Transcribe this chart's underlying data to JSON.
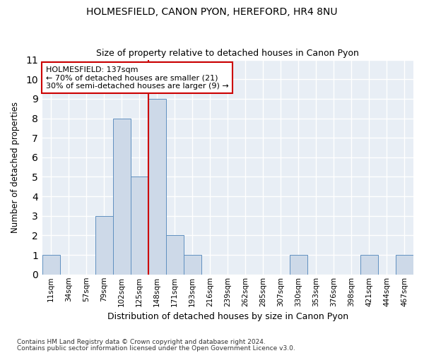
{
  "title1": "HOLMESFIELD, CANON PYON, HEREFORD, HR4 8NU",
  "title2": "Size of property relative to detached houses in Canon Pyon",
  "xlabel": "Distribution of detached houses by size in Canon Pyon",
  "ylabel": "Number of detached properties",
  "categories": [
    "11sqm",
    "34sqm",
    "57sqm",
    "79sqm",
    "102sqm",
    "125sqm",
    "148sqm",
    "171sqm",
    "193sqm",
    "216sqm",
    "239sqm",
    "262sqm",
    "285sqm",
    "307sqm",
    "330sqm",
    "353sqm",
    "376sqm",
    "398sqm",
    "421sqm",
    "444sqm",
    "467sqm"
  ],
  "values": [
    1,
    0,
    0,
    3,
    8,
    5,
    9,
    2,
    1,
    0,
    0,
    0,
    0,
    0,
    1,
    0,
    0,
    0,
    1,
    0,
    1
  ],
  "bar_color": "#cdd9e8",
  "bar_edge_color": "#6090c0",
  "vline_x_idx": 6,
  "vline_color": "#cc0000",
  "annotation_title": "HOLMESFIELD: 137sqm",
  "annotation_line1": "← 70% of detached houses are smaller (21)",
  "annotation_line2": "30% of semi-detached houses are larger (9) →",
  "annotation_box_color": "#cc0000",
  "ylim": [
    0,
    11
  ],
  "yticks": [
    0,
    1,
    2,
    3,
    4,
    5,
    6,
    7,
    8,
    9,
    10,
    11
  ],
  "footer1": "Contains HM Land Registry data © Crown copyright and database right 2024.",
  "footer2": "Contains public sector information licensed under the Open Government Licence v3.0."
}
